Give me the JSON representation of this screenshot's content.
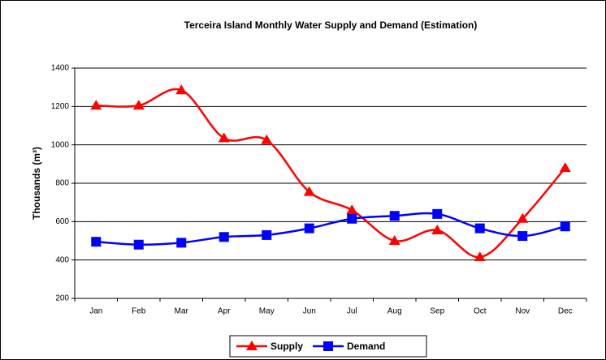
{
  "chart_data": {
    "type": "line",
    "title": "Terceira Island Monthly Water Supply and Demand (Estimation)",
    "y_label": "Thousands (m³)",
    "categories": [
      "Jan",
      "Feb",
      "Mar",
      "Apr",
      "May",
      "Jun",
      "Jul",
      "Aug",
      "Sep",
      "Oct",
      "Nov",
      "Dec"
    ],
    "series": [
      {
        "name": "Supply",
        "color": "#ff0000",
        "marker": "triangle",
        "values": [
          1205,
          1205,
          1285,
          1035,
          1025,
          755,
          660,
          500,
          555,
          415,
          615,
          880
        ]
      },
      {
        "name": "Demand",
        "color": "#0000ff",
        "marker": "square",
        "values": [
          495,
          480,
          490,
          520,
          530,
          565,
          615,
          630,
          640,
          565,
          525,
          575
        ]
      }
    ],
    "ylim": [
      200,
      1400
    ],
    "yticks": [
      200,
      400,
      600,
      800,
      1000,
      1200,
      1400
    ],
    "grid": true,
    "smooth": true,
    "legend": "bottom"
  }
}
